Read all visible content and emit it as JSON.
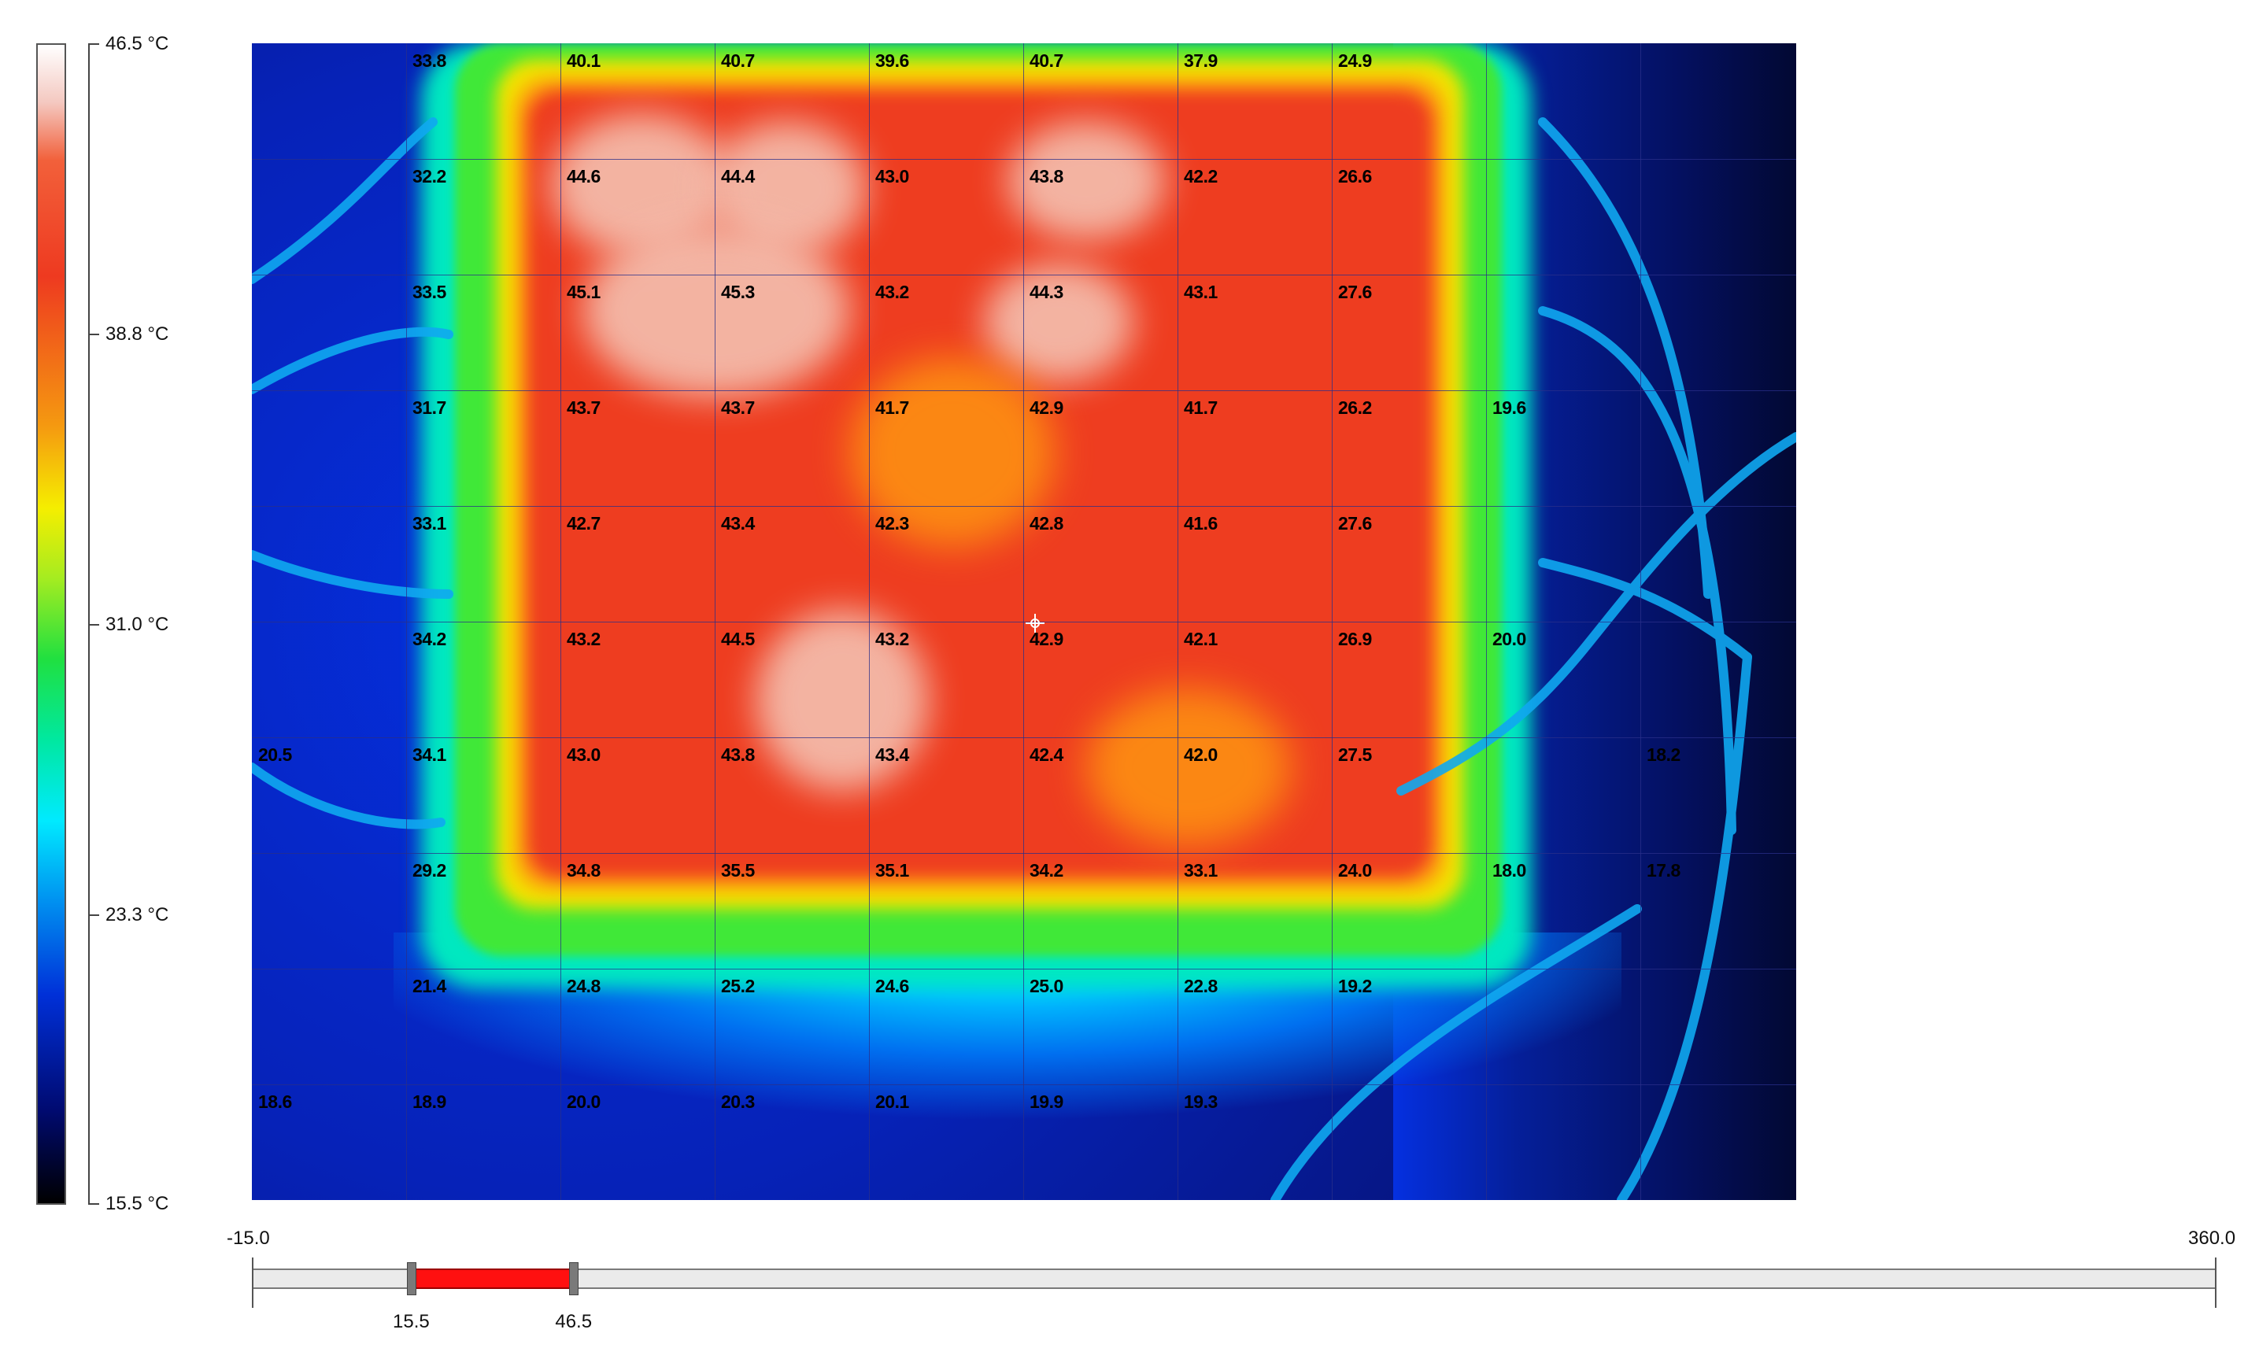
{
  "scale": {
    "unit": "°C",
    "labels": [
      "46.5 °C",
      "38.8 °C",
      "31.0 °C",
      "23.3 °C",
      "15.5 °C"
    ],
    "max": 46.5,
    "min": 15.5
  },
  "grid": {
    "rows": [
      [
        "",
        "33.8",
        "40.1",
        "40.7",
        "39.6",
        "40.7",
        "37.9",
        "24.9",
        "",
        ""
      ],
      [
        "",
        "32.2",
        "44.6",
        "44.4",
        "43.0",
        "43.8",
        "42.2",
        "26.6",
        "",
        ""
      ],
      [
        "",
        "33.5",
        "45.1",
        "45.3",
        "43.2",
        "44.3",
        "43.1",
        "27.6",
        "",
        ""
      ],
      [
        "",
        "31.7",
        "43.7",
        "43.7",
        "41.7",
        "42.9",
        "41.7",
        "26.2",
        "19.6",
        ""
      ],
      [
        "",
        "33.1",
        "42.7",
        "43.4",
        "42.3",
        "42.8",
        "41.6",
        "27.6",
        "",
        ""
      ],
      [
        "",
        "34.2",
        "43.2",
        "44.5",
        "43.2",
        "42.9",
        "42.1",
        "26.9",
        "20.0",
        ""
      ],
      [
        "20.5",
        "34.1",
        "43.0",
        "43.8",
        "43.4",
        "42.4",
        "42.0",
        "27.5",
        "",
        "18.2"
      ],
      [
        "",
        "29.2",
        "34.8",
        "35.5",
        "35.1",
        "34.2",
        "33.1",
        "24.0",
        "18.0",
        "17.8"
      ],
      [
        "",
        "21.4",
        "24.8",
        "25.2",
        "24.6",
        "25.0",
        "22.8",
        "19.2",
        "",
        ""
      ],
      [
        "18.6",
        "18.9",
        "20.0",
        "20.3",
        "20.1",
        "19.9",
        "19.3",
        "",
        "",
        ""
      ]
    ]
  },
  "range": {
    "min_label": "-15.0",
    "max_label": "360.0",
    "low_label": "15.5",
    "high_label": "46.5",
    "min": -15.0,
    "max": 360.0,
    "low": 15.5,
    "high": 46.5
  }
}
